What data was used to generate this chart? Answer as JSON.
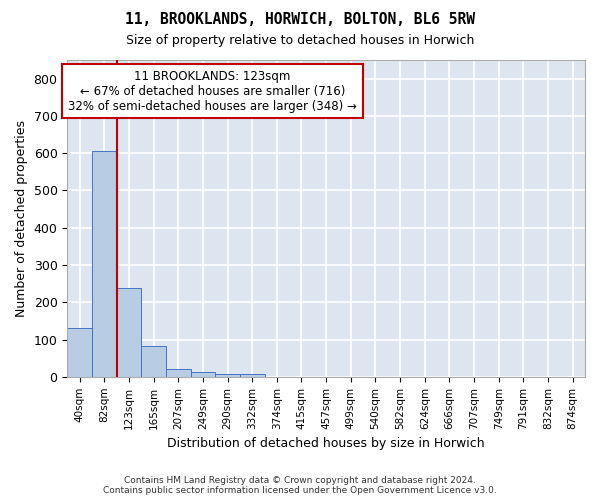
{
  "title_line1": "11, BROOKLANDS, HORWICH, BOLTON, BL6 5RW",
  "title_line2": "Size of property relative to detached houses in Horwich",
  "xlabel": "Distribution of detached houses by size in Horwich",
  "ylabel": "Number of detached properties",
  "bar_color": "#b8cce4",
  "bar_edge_color": "#4472c4",
  "vline_color": "#c00000",
  "annotation_text": "11 BROOKLANDS: 123sqm\n← 67% of detached houses are smaller (716)\n32% of semi-detached houses are larger (348) →",
  "annotation_box_color": "#ffffff",
  "annotation_box_edge": "#c00000",
  "bins": [
    "40sqm",
    "82sqm",
    "123sqm",
    "165sqm",
    "207sqm",
    "249sqm",
    "290sqm",
    "332sqm",
    "374sqm",
    "415sqm",
    "457sqm",
    "499sqm",
    "540sqm",
    "582sqm",
    "624sqm",
    "666sqm",
    "707sqm",
    "749sqm",
    "791sqm",
    "832sqm",
    "874sqm"
  ],
  "values": [
    130,
    605,
    238,
    82,
    22,
    14,
    8,
    8,
    0,
    0,
    0,
    0,
    0,
    0,
    0,
    0,
    0,
    0,
    0,
    0,
    0
  ],
  "ylim": [
    0,
    850
  ],
  "yticks": [
    0,
    100,
    200,
    300,
    400,
    500,
    600,
    700,
    800
  ],
  "background_color": "#dde6f0",
  "grid_color": "#ffffff",
  "footer_line1": "Contains HM Land Registry data © Crown copyright and database right 2024.",
  "footer_line2": "Contains public sector information licensed under the Open Government Licence v3.0."
}
